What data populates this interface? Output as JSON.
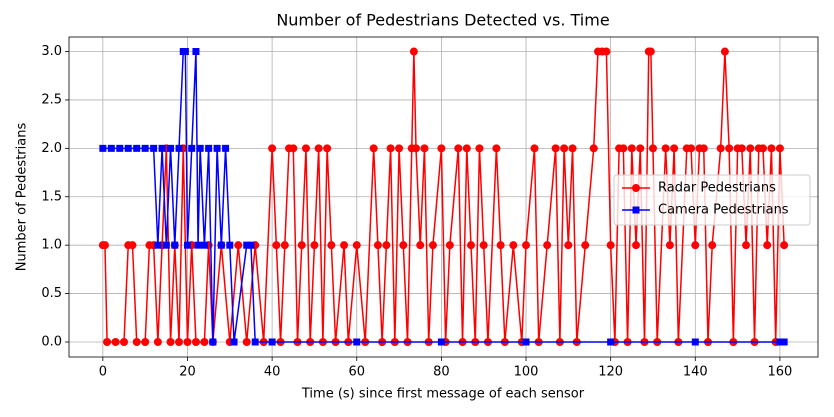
{
  "chart_data": {
    "type": "line",
    "title": "Number of Pedestrians Detected vs. Time",
    "x_label": "Time (s) since first message of each sensor",
    "y_label": "Number of Pedestrians",
    "xlim": [
      -8,
      169
    ],
    "ylim": [
      -0.155,
      3.15
    ],
    "xticks": [
      0,
      20,
      40,
      60,
      80,
      100,
      120,
      140,
      160
    ],
    "yticks": [
      {
        "value": 0,
        "label": "0.0"
      },
      {
        "value": 0.5,
        "label": "0.5"
      },
      {
        "value": 1,
        "label": "1.0"
      },
      {
        "value": 1.5,
        "label": "1.5"
      },
      {
        "value": 2,
        "label": "2.0"
      },
      {
        "value": 2.5,
        "label": "2.5"
      },
      {
        "value": 3,
        "label": "3.0"
      }
    ],
    "grid": true,
    "legend": "center right",
    "series": [
      {
        "name": "Radar Pedestrians",
        "color": "#ff0000",
        "marker": "circle",
        "x": [
          0,
          0.5,
          1,
          3,
          5,
          6,
          7,
          8,
          10,
          11,
          12,
          13,
          14,
          15,
          16,
          17,
          18,
          19,
          20,
          21,
          22,
          24,
          25,
          26,
          28,
          30,
          32,
          34,
          36,
          38,
          40,
          41,
          42,
          43,
          44,
          45,
          46,
          47,
          48,
          49,
          50,
          51,
          52,
          53,
          54,
          55,
          57,
          58,
          60,
          62,
          64,
          65,
          66,
          67,
          68,
          69,
          70,
          71,
          72,
          73,
          73.5,
          74,
          75,
          76,
          77,
          78,
          80,
          81,
          82,
          84,
          85,
          86,
          87,
          88,
          89,
          90,
          91,
          93,
          94,
          95,
          97,
          99,
          100,
          102,
          103,
          105,
          107,
          108,
          109,
          110,
          111,
          112,
          114,
          116,
          117,
          118,
          119,
          120,
          121,
          122,
          123,
          124,
          125,
          126,
          127,
          128,
          129,
          129.5,
          130,
          131,
          133,
          134,
          135,
          136,
          138,
          139,
          140,
          141,
          142,
          143,
          144,
          146,
          147,
          148,
          149,
          150,
          151,
          152,
          153,
          154,
          155,
          156,
          157,
          158,
          159,
          160,
          161
        ],
        "values": [
          1,
          1,
          0,
          0,
          0,
          1,
          1,
          0,
          0,
          1,
          1,
          0,
          1,
          2,
          0,
          1,
          0,
          2,
          0,
          1,
          0,
          0,
          1,
          0,
          1,
          0,
          1,
          0,
          1,
          0,
          2,
          1,
          0,
          1,
          2,
          2,
          0,
          1,
          2,
          0,
          1,
          2,
          0,
          2,
          1,
          0,
          1,
          0,
          1,
          0,
          2,
          1,
          0,
          1,
          2,
          0,
          2,
          1,
          0,
          2,
          3,
          2,
          1,
          2,
          0,
          1,
          2,
          0,
          1,
          2,
          0,
          2,
          1,
          0,
          2,
          1,
          0,
          2,
          1,
          0,
          1,
          0,
          1,
          2,
          0,
          1,
          2,
          0,
          2,
          1,
          2,
          0,
          1,
          2,
          3,
          3,
          3,
          1,
          0,
          2,
          2,
          0,
          2,
          1,
          2,
          0,
          3,
          3,
          2,
          0,
          2,
          1,
          2,
          0,
          2,
          2,
          1,
          2,
          2,
          0,
          1,
          2,
          3,
          2,
          0,
          2,
          2,
          1,
          2,
          0,
          2,
          2,
          1,
          2,
          0,
          2,
          1
        ]
      },
      {
        "name": "Camera Pedestrians",
        "color": "#0000ff",
        "marker": "square",
        "x": [
          0,
          2,
          4,
          6,
          8,
          10,
          12,
          13,
          14,
          15,
          16,
          17,
          18,
          19,
          19.5,
          20,
          21,
          22,
          22.5,
          23,
          24,
          25,
          26,
          27,
          28,
          29,
          30,
          31,
          34,
          35,
          36,
          40,
          60,
          80,
          100,
          120,
          140,
          160,
          161
        ],
        "values": [
          2,
          2,
          2,
          2,
          2,
          2,
          2,
          1,
          2,
          1,
          2,
          1,
          2,
          3,
          3,
          1,
          2,
          3,
          1,
          2,
          1,
          2,
          0,
          2,
          1,
          2,
          1,
          0,
          1,
          1,
          0,
          0,
          0,
          0,
          0,
          0,
          0,
          0,
          0
        ]
      }
    ]
  }
}
